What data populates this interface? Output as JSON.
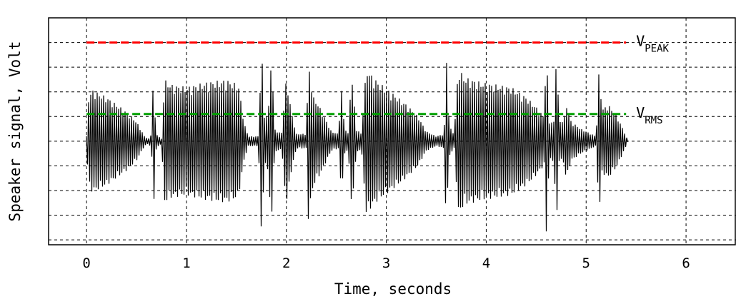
{
  "chart_data": {
    "type": "line",
    "title": "",
    "xlabel": "Time, seconds",
    "ylabel": "Speaker signal, Volt",
    "xlim": [
      -0.38,
      6.5
    ],
    "ylim": [
      -4.2,
      5.0
    ],
    "x_ticks": [
      "0",
      "1",
      "2",
      "3",
      "4",
      "5",
      "6"
    ],
    "x_tick_values": [
      0,
      1,
      2,
      3,
      4,
      5,
      6
    ],
    "y_gridlines": [
      -4,
      -3,
      -2,
      -1,
      0,
      1,
      2,
      3,
      4
    ],
    "grid": true,
    "colors": {
      "peak": "#ff0000",
      "rms": "#00a000",
      "signal": "#000000",
      "grid": "#000000"
    },
    "reference_lines": [
      {
        "id": "peak",
        "main": "V",
        "sub": "PEAK",
        "y": 4.0,
        "x_start": 0.0,
        "x_end": 5.4
      },
      {
        "id": "rms",
        "main": "V",
        "sub": "RMS",
        "y": 1.1,
        "x_start": 0.0,
        "x_end": 5.4
      }
    ],
    "signal_envelope": [
      [
        0.0,
        0.2
      ],
      [
        0.02,
        1.8
      ],
      [
        0.06,
        2.1
      ],
      [
        0.1,
        2.0
      ],
      [
        0.2,
        1.8
      ],
      [
        0.3,
        1.5
      ],
      [
        0.4,
        1.2
      ],
      [
        0.5,
        0.8
      ],
      [
        0.58,
        0.2
      ],
      [
        0.62,
        0.1
      ],
      [
        0.65,
        0.3
      ],
      [
        0.67,
        3.0
      ],
      [
        0.69,
        0.4
      ],
      [
        0.72,
        0.2
      ],
      [
        0.75,
        0.1
      ],
      [
        0.78,
        2.5
      ],
      [
        0.85,
        2.3
      ],
      [
        1.0,
        2.2
      ],
      [
        1.2,
        2.4
      ],
      [
        1.4,
        2.5
      ],
      [
        1.52,
        2.3
      ],
      [
        1.58,
        0.7
      ],
      [
        1.62,
        0.2
      ],
      [
        1.72,
        0.2
      ],
      [
        1.75,
        4.0
      ],
      [
        1.78,
        1.0
      ],
      [
        1.82,
        1.2
      ],
      [
        1.85,
        3.8
      ],
      [
        1.88,
        0.5
      ],
      [
        1.95,
        0.3
      ],
      [
        2.0,
        2.6
      ],
      [
        2.05,
        1.2
      ],
      [
        2.1,
        0.3
      ],
      [
        2.2,
        0.3
      ],
      [
        2.22,
        3.2
      ],
      [
        2.27,
        1.8
      ],
      [
        2.32,
        1.5
      ],
      [
        2.38,
        1.0
      ],
      [
        2.45,
        0.4
      ],
      [
        2.52,
        0.3
      ],
      [
        2.55,
        2.2
      ],
      [
        2.58,
        0.6
      ],
      [
        2.62,
        0.3
      ],
      [
        2.65,
        2.9
      ],
      [
        2.7,
        0.5
      ],
      [
        2.75,
        0.3
      ],
      [
        2.8,
        3.0
      ],
      [
        2.85,
        2.7
      ],
      [
        2.92,
        2.4
      ],
      [
        3.05,
        2.0
      ],
      [
        3.2,
        1.5
      ],
      [
        3.32,
        1.0
      ],
      [
        3.4,
        0.4
      ],
      [
        3.5,
        0.2
      ],
      [
        3.58,
        0.3
      ],
      [
        3.6,
        3.8
      ],
      [
        3.63,
        0.6
      ],
      [
        3.68,
        0.3
      ],
      [
        3.72,
        3.0
      ],
      [
        3.78,
        2.6
      ],
      [
        3.95,
        2.4
      ],
      [
        4.1,
        2.3
      ],
      [
        4.25,
        2.2
      ],
      [
        4.4,
        1.8
      ],
      [
        4.5,
        1.4
      ],
      [
        4.58,
        1.0
      ],
      [
        4.6,
        3.9
      ],
      [
        4.63,
        0.8
      ],
      [
        4.68,
        0.8
      ],
      [
        4.7,
        3.9
      ],
      [
        4.73,
        0.8
      ],
      [
        4.78,
        0.9
      ],
      [
        4.8,
        1.6
      ],
      [
        4.85,
        0.8
      ],
      [
        4.95,
        0.5
      ],
      [
        5.05,
        0.3
      ],
      [
        5.1,
        0.2
      ],
      [
        5.13,
        3.0
      ],
      [
        5.16,
        1.3
      ],
      [
        5.22,
        1.5
      ],
      [
        5.3,
        1.1
      ],
      [
        5.38,
        0.4
      ],
      [
        5.42,
        0.0
      ]
    ]
  }
}
